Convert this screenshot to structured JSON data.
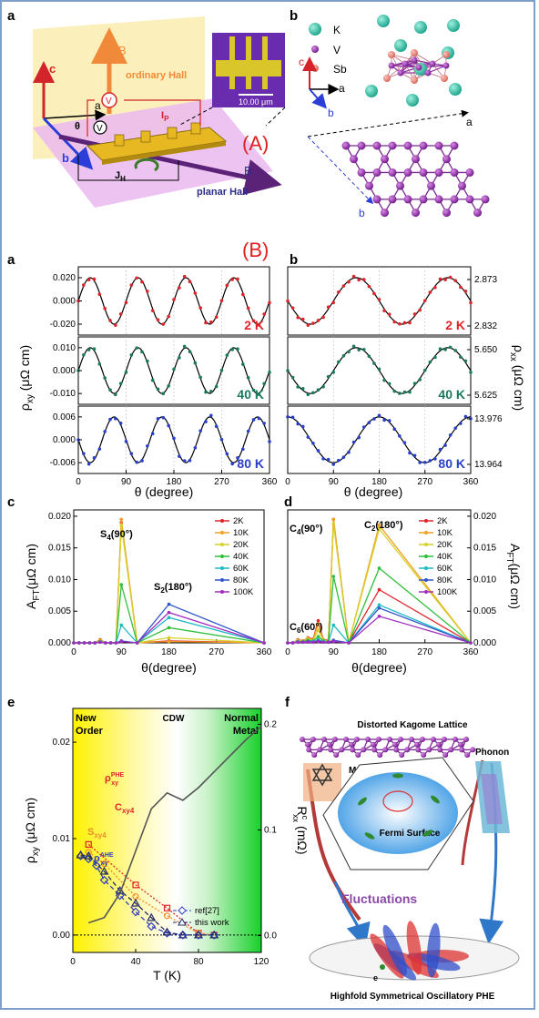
{
  "panel_labels": {
    "top_a": "a",
    "top_b": "b",
    "b_a": "a",
    "b_b": "b",
    "c": "c",
    "d": "d",
    "e": "e",
    "f": "f"
  },
  "section_A": "(A)",
  "section_B": "(B)",
  "colors": {
    "frame": "#7f9fc8",
    "section_label": "#e02020",
    "k_atom": "#2bb39b",
    "v_atom": "#8a2aa0",
    "sb_atom": "#e8847a",
    "planar_hall_plane": "#eab8f0",
    "ordinary_hall_plane": "#fbeeb4"
  },
  "schematic": {
    "axis_c": "c",
    "axis_a": "a",
    "axis_b": "b",
    "B_ordinary": "B",
    "ordinary_hall": "ordinary Hall",
    "B_planar": "B",
    "planar_hall": "planar Hall",
    "theta": "θ",
    "Vp": "V",
    "Vh": "V",
    "Ip": "I",
    "Ip_sub": "P",
    "Jh": "J",
    "Jh_sub": "H",
    "scale_bar": "10.00 μm"
  },
  "crystal": {
    "legend": [
      {
        "name": "K"
      },
      {
        "name": "V"
      },
      {
        "name": "Sb"
      }
    ],
    "axis_c": "c",
    "axis_a": "a",
    "axis_b": "b",
    "lattice_a": "a",
    "lattice_b": "b"
  },
  "panel_B": {
    "y_label_left": "ρ",
    "y_label_left_sub": "xy",
    "y_label_left_unit": " (μΩ cm)",
    "y_label_right": "ρ",
    "y_label_right_sub": "xx",
    "y_label_right_unit": " (μΩ cm)",
    "x_label": "θ (degree)",
    "x_ticks": [
      "0",
      "90",
      "180",
      "270",
      "360"
    ],
    "left_rows": [
      {
        "temp": "2 K",
        "yticks": [
          "0.020",
          "0.000",
          "-0.020"
        ],
        "color": "#e0242b"
      },
      {
        "temp": "40 K",
        "yticks": [
          "0.010",
          "0.000",
          "-0.010"
        ],
        "color": "#1a7a5a"
      },
      {
        "temp": "80 K",
        "yticks": [
          "0.006",
          "0.000",
          "-0.006"
        ],
        "color": "#2a3fc9"
      }
    ],
    "right_rows": [
      {
        "temp": "2 K",
        "yticks": [
          "2.873",
          "2.832"
        ],
        "color": "#e0242b"
      },
      {
        "temp": "40 K",
        "yticks": [
          "5.650",
          "5.625"
        ],
        "color": "#1a7a5a"
      },
      {
        "temp": "80 K",
        "yticks": [
          "13.976",
          "13.964"
        ],
        "color": "#2a3fc9"
      }
    ]
  },
  "chart_data": [
    {
      "type": "line",
      "panel": "c",
      "xlabel": "θ(degree)",
      "ylabel": "A",
      "ylabel_sub": "FT",
      "ylabel_unit": "(μΩ cm)",
      "x": [
        0,
        10,
        20,
        30,
        40,
        50,
        60,
        70,
        80,
        90,
        120,
        180,
        360
      ],
      "x_ticks": [
        "0",
        "90",
        "180",
        "270",
        "360"
      ],
      "y_ticks": [
        "0.000",
        "0.005",
        "0.010",
        "0.015",
        "0.020"
      ],
      "xlim": [
        0,
        360
      ],
      "ylim": [
        0,
        0.021
      ],
      "annotations": [
        {
          "text": "S",
          "sub": "4",
          "after": "(90°)"
        },
        {
          "text": "S",
          "sub": "2",
          "after": "(180°)"
        }
      ],
      "series": [
        {
          "name": "2K",
          "color": "#e0242b",
          "values": [
            0,
            0,
            0,
            0,
            0,
            0.0005,
            0,
            0,
            0,
            0.019,
            0,
            0.0003,
            0
          ]
        },
        {
          "name": "10K",
          "color": "#f0a020",
          "values": [
            0,
            0,
            0,
            0,
            0,
            0.0004,
            0,
            0,
            0,
            0.0195,
            0,
            0.0002,
            0
          ]
        },
        {
          "name": "20K",
          "color": "#d7d02a",
          "values": [
            0,
            0,
            0,
            0,
            0,
            0.0003,
            0,
            0,
            0,
            0.0185,
            0,
            0.0008,
            0
          ]
        },
        {
          "name": "40K",
          "color": "#2fbf3a",
          "values": [
            0,
            0,
            0,
            0,
            0,
            0.0002,
            0,
            0,
            0,
            0.0092,
            0,
            0.0024,
            0
          ]
        },
        {
          "name": "60K",
          "color": "#1fb8c6",
          "values": [
            0,
            0,
            0,
            0,
            0,
            0.0001,
            0,
            0,
            0,
            0.0028,
            0,
            0.004,
            0
          ]
        },
        {
          "name": "80K",
          "color": "#3155c9",
          "values": [
            0,
            0,
            0,
            0,
            0,
            0.0001,
            0,
            0,
            0,
            0.0003,
            0,
            0.0061,
            0
          ]
        },
        {
          "name": "100K",
          "color": "#a02cc0",
          "values": [
            0,
            0,
            0,
            0,
            0,
            0.0001,
            0,
            0,
            0,
            0.0002,
            0,
            0.0048,
            0
          ]
        }
      ]
    },
    {
      "type": "line",
      "panel": "d",
      "xlabel": "θ(degree)",
      "ylabel": "A",
      "ylabel_sub": "FT",
      "ylabel_unit": "(μΩ cm)",
      "x": [
        0,
        10,
        20,
        30,
        40,
        50,
        60,
        70,
        80,
        90,
        120,
        180,
        360
      ],
      "x_ticks": [
        "0",
        "90",
        "180",
        "270",
        "360"
      ],
      "y_ticks": [
        "0.000",
        "0.005",
        "0.010",
        "0.015",
        "0.020"
      ],
      "xlim": [
        0,
        360
      ],
      "ylim": [
        0,
        0.021
      ],
      "annotations": [
        {
          "text": "C",
          "sub": "4",
          "after": "(90°)"
        },
        {
          "text": "C",
          "sub": "2",
          "after": "(180°)"
        },
        {
          "text": "C",
          "sub": "6",
          "after": "(60°)"
        }
      ],
      "series": [
        {
          "name": "2K",
          "color": "#e0242b",
          "values": [
            0,
            0,
            0.0005,
            0.0003,
            0.0008,
            0.0006,
            0.0035,
            0.0005,
            0.0004,
            0.0195,
            0,
            0.0084,
            0
          ]
        },
        {
          "name": "10K",
          "color": "#f0a020",
          "values": [
            0,
            0,
            0.0004,
            0.0003,
            0.0007,
            0.0005,
            0.003,
            0.0004,
            0.0003,
            0.0195,
            0,
            0.0186,
            0
          ]
        },
        {
          "name": "20K",
          "color": "#d7d02a",
          "values": [
            0,
            0,
            0.0003,
            0.0002,
            0.0006,
            0.0004,
            0.002,
            0.0004,
            0.0003,
            0.0188,
            0,
            0.018,
            0
          ]
        },
        {
          "name": "40K",
          "color": "#2fbf3a",
          "values": [
            0,
            0,
            0.0002,
            0.0002,
            0.0004,
            0.0003,
            0.001,
            0.0003,
            0.0002,
            0.0105,
            0,
            0.0118,
            0
          ]
        },
        {
          "name": "60K",
          "color": "#1fb8c6",
          "values": [
            0,
            0,
            0.0002,
            0.0001,
            0.0002,
            0.0002,
            0.0005,
            0.0002,
            0.0001,
            0.0028,
            0,
            0.006,
            0
          ]
        },
        {
          "name": "80K",
          "color": "#3155c9",
          "values": [
            0,
            0,
            0.0001,
            0.0001,
            0.0002,
            0.0001,
            0.0003,
            0.0001,
            0.0001,
            0.0004,
            0,
            0.0055,
            0
          ]
        },
        {
          "name": "100K",
          "color": "#a02cc0",
          "values": [
            0,
            0,
            0.0001,
            0.0001,
            0.0001,
            0.0001,
            0.0002,
            0.0001,
            0.0001,
            0.0002,
            0,
            0.0042,
            0
          ]
        }
      ]
    },
    {
      "type": "scatter",
      "panel": "e",
      "xlabel": "T (K)",
      "ylabel": "ρ",
      "ylabel_sub": "xy",
      "ylabel_unit": " (μΩ cm)",
      "y2label": "R",
      "y2label_sup": "c",
      "y2label_sub": "xx",
      "y2label_unit": " (mΩ)",
      "x_ticks": [
        "0",
        "40",
        "80",
        "120"
      ],
      "y_ticks": [
        "0.00",
        "0.01",
        "0.02"
      ],
      "y2_ticks": [
        "0.0",
        "0.1",
        "0.2"
      ],
      "xlim": [
        0,
        120
      ],
      "ylim": [
        -0.0018,
        0.0235
      ],
      "y2lim": [
        -0.016,
        0.215
      ],
      "regions": [
        {
          "label": "New Order"
        },
        {
          "label": "CDW"
        },
        {
          "label": "Normal Metal"
        }
      ],
      "series": [
        {
          "name": "ρxy PHE (Cxy4)",
          "label": "ρ",
          "label_sup": "PHE",
          "label_sub": "xy",
          "label2": "C",
          "label2_sub": "xy4",
          "color": "#e0242b",
          "marker": "square",
          "x": [
            10,
            40,
            60,
            80,
            90
          ],
          "y": [
            0.0094,
            0.0052,
            0.0028,
            0.0002,
            0.0
          ]
        },
        {
          "name": "Sxy4",
          "label": "S",
          "label_sub": "xy4",
          "color": "#ef8d2c",
          "marker": "circle",
          "x": [
            10,
            20,
            40,
            60,
            80,
            90
          ],
          "y": [
            0.0086,
            0.0074,
            0.004,
            0.002,
            0.0002,
            0.0
          ]
        },
        {
          "name": "ref[27]",
          "label": "ref[27]",
          "color": "#2f3fbf",
          "marker": "diamond",
          "x": [
            5,
            10,
            15,
            20,
            30,
            40,
            50,
            60,
            70,
            80,
            90
          ],
          "y": [
            0.0082,
            0.0079,
            0.0072,
            0.0057,
            0.0041,
            0.0024,
            0.0009,
            0.0002,
            0.0,
            0.0,
            0.0
          ]
        },
        {
          "name": "this work",
          "label": "this work",
          "color": "#232a6a",
          "marker": "triangle",
          "x": [
            5,
            10,
            20,
            30,
            40,
            50,
            60,
            70,
            80,
            90
          ],
          "y": [
            0.0083,
            0.0082,
            0.0066,
            0.0046,
            0.0033,
            0.0018,
            0.0003,
            0.0,
            0.0,
            0.0
          ]
        },
        {
          "name": "ρxy AHE",
          "label": "ρ",
          "label_sup": "AHE",
          "label_sub": "xy",
          "color": "#2f3fbf",
          "x": [],
          "y": []
        },
        {
          "name": "Rxx c",
          "color": "#555555",
          "axis": "right",
          "x": [
            10,
            20,
            30,
            40,
            50,
            60,
            70,
            80,
            90,
            100,
            110,
            120
          ],
          "y2": [
            0.012,
            0.017,
            0.04,
            0.08,
            0.12,
            0.135,
            0.128,
            0.14,
            0.155,
            0.17,
            0.185,
            0.198
          ]
        }
      ]
    }
  ],
  "panel_f": {
    "title": "Distorted Kagome Lattice",
    "magnetism": "Magnetism",
    "phonon": "Phonon",
    "fermi": "Fermi Surface",
    "fluctuations": "Fluctuations",
    "bottom": "Highfold Symmetrical Oscillatory PHE",
    "e_label": "e"
  }
}
